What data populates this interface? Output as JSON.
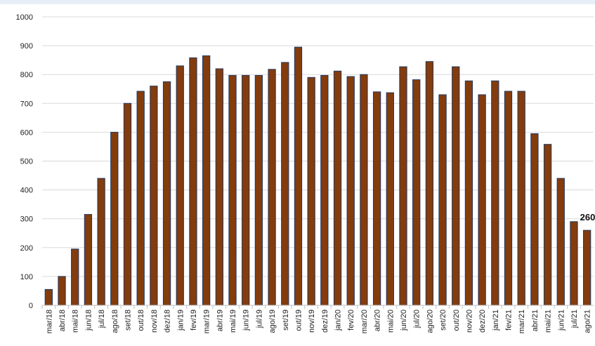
{
  "chart_data": {
    "type": "bar",
    "categories": [
      "mar/18",
      "abr/18",
      "mai/18",
      "jun/18",
      "jul/18",
      "ago/18",
      "set/18",
      "out/18",
      "nov/18",
      "dez/18",
      "jan/19",
      "fev/19",
      "mar/19",
      "abr/19",
      "mai/19",
      "jun/19",
      "jul/19",
      "ago/19",
      "set/19",
      "out/19",
      "nov/19",
      "dez/19",
      "jan/20",
      "fev/20",
      "mar/20",
      "abr/20",
      "mai/20",
      "jun/20",
      "jul/20",
      "ago/20",
      "set/20",
      "out/20",
      "nov/20",
      "dez/20",
      "jan/21",
      "fev/21",
      "mar/21",
      "abr/21",
      "mai/21",
      "jun/21",
      "jul/21",
      "ago/21"
    ],
    "values": [
      55,
      100,
      195,
      315,
      440,
      600,
      700,
      742,
      760,
      775,
      830,
      858,
      865,
      820,
      797,
      797,
      797,
      818,
      842,
      895,
      790,
      797,
      812,
      793,
      800,
      740,
      737,
      827,
      782,
      845,
      730,
      827,
      778,
      730,
      778,
      742,
      742,
      595,
      558,
      440,
      290,
      260
    ],
    "ylim": [
      0,
      1000
    ],
    "yticks": [
      0,
      100,
      200,
      300,
      400,
      500,
      600,
      700,
      800,
      900,
      1000
    ],
    "grid": true,
    "legend": "none",
    "bar_color": "#843c0c",
    "bar_edge_color": "#1f3864",
    "annotations": [
      {
        "category": "ago/21",
        "text": "260"
      }
    ]
  }
}
